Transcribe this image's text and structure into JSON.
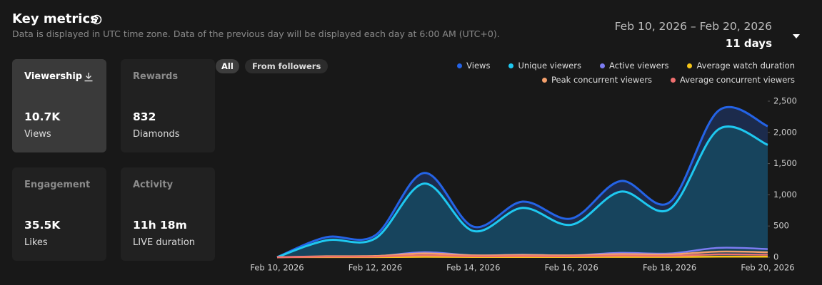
{
  "header": {
    "title": "Key metrics",
    "subtitle": "Data is displayed in UTC time zone. Data of the previous day will be displayed each day at 6:00 AM (UTC+0).",
    "date_range": "Feb 10, 2026 – Feb 20, 2026",
    "duration": "11 days"
  },
  "cards": [
    {
      "title": "Viewership",
      "value": "10.7K",
      "label": "Views"
    },
    {
      "title": "Rewards",
      "value": "832",
      "label": "Diamonds"
    },
    {
      "title": "Engagement",
      "value": "35.5K",
      "label": "Likes"
    },
    {
      "title": "Activity",
      "value": "11h 18m",
      "label": "LIVE duration"
    }
  ],
  "filters": [
    "All",
    "From followers"
  ],
  "chart_data": {
    "type": "area",
    "categories": [
      "Feb 10, 2026",
      null,
      "Feb 12, 2026",
      null,
      "Feb 14, 2026",
      null,
      "Feb 16, 2026",
      null,
      "Feb 18, 2026",
      null,
      "Feb 20, 2026"
    ],
    "series": [
      {
        "name": "Views",
        "color": "#2463e6",
        "fill": "#1d2d52",
        "values": [
          0,
          320,
          350,
          1350,
          490,
          890,
          620,
          1220,
          880,
          2350,
          2100
        ]
      },
      {
        "name": "Unique viewers",
        "color": "#1ec8f0",
        "fill": "#17475f",
        "values": [
          0,
          270,
          300,
          1180,
          420,
          790,
          520,
          1050,
          770,
          2050,
          1800
        ]
      },
      {
        "name": "Active viewers",
        "color": "#7c7cf2",
        "values": [
          0,
          10,
          15,
          80,
          30,
          40,
          30,
          70,
          60,
          150,
          130
        ]
      },
      {
        "name": "Average watch duration",
        "color": "#f5c518",
        "values": [
          0,
          2,
          2,
          5,
          3,
          3,
          3,
          4,
          4,
          8,
          8
        ]
      },
      {
        "name": "Peak concurrent viewers",
        "color": "#f4a06c",
        "values": [
          0,
          15,
          20,
          60,
          30,
          35,
          30,
          50,
          45,
          90,
          80
        ]
      },
      {
        "name": "Average concurrent viewers",
        "color": "#ef6f6f",
        "values": [
          0,
          8,
          10,
          30,
          15,
          18,
          15,
          25,
          22,
          45,
          40
        ]
      }
    ],
    "ylim": [
      0,
      2500
    ],
    "yticks": [
      0,
      500,
      {
        "value": 1000,
        "label": "1,000"
      },
      {
        "value": 1500,
        "label": "1,500"
      },
      {
        "value": 2000,
        "label": "2,000"
      },
      {
        "value": 2500,
        "label": "2,500"
      }
    ]
  }
}
